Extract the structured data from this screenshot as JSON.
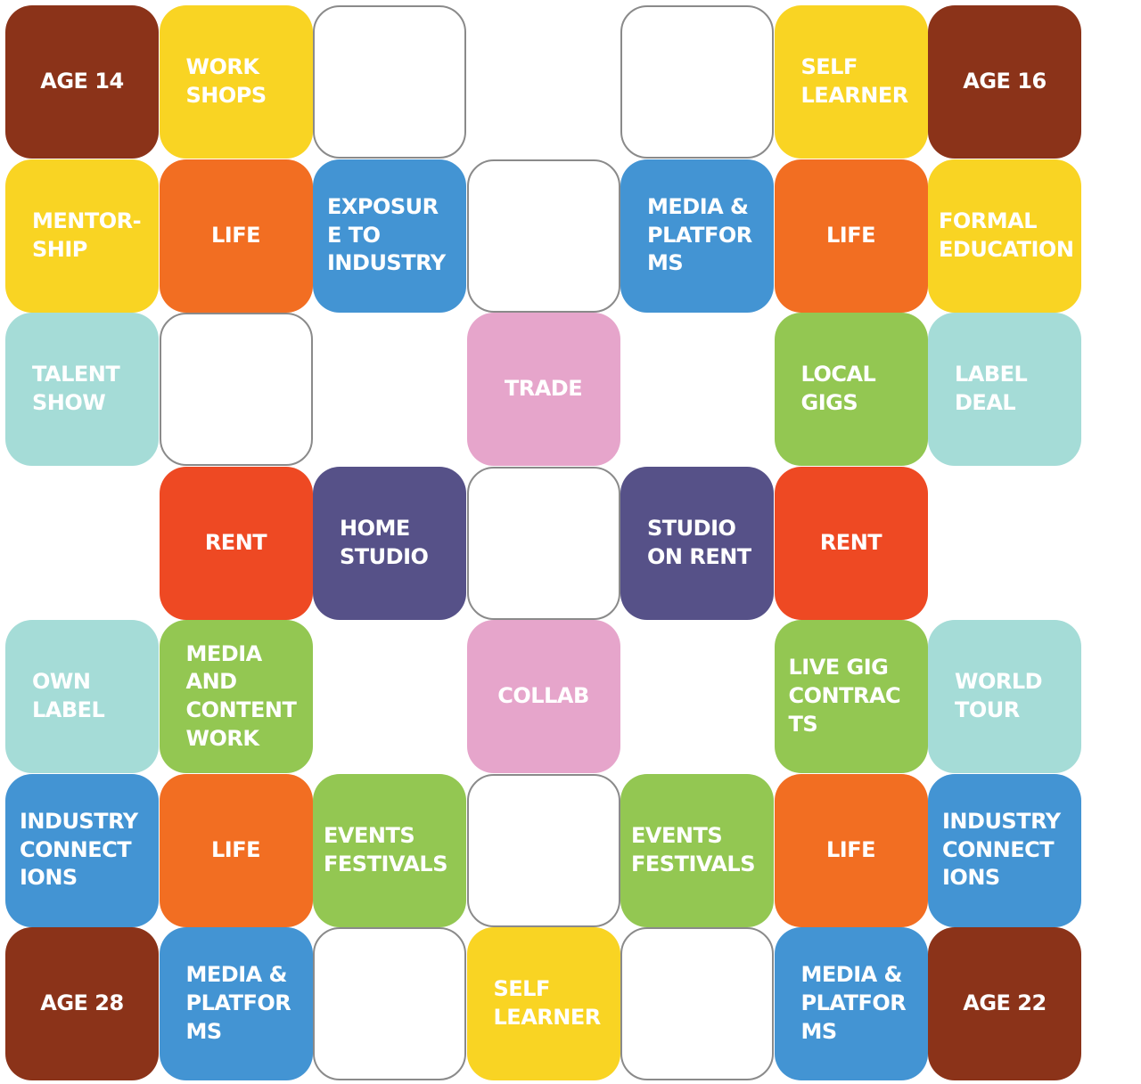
{
  "colors": {
    "brown": "#8B3319",
    "yellow": "#F9D423",
    "orange": "#F26E22",
    "blue": "#4394D3",
    "teal": "#A5DCD7",
    "pink": "#E6A5CB",
    "green": "#93C752",
    "red": "#EE4923",
    "purple": "#565188",
    "empty": "#FFFFFF"
  },
  "board": {
    "tiles": [
      {
        "row": 0,
        "col": 0,
        "text": "AGE 14",
        "color": "brown",
        "align": "center"
      },
      {
        "row": 0,
        "col": 1,
        "text": "WORK\nSHOPS",
        "color": "yellow",
        "align": "left"
      },
      {
        "row": 0,
        "col": 2,
        "text": "",
        "color": "empty",
        "align": "center"
      },
      {
        "row": 0,
        "col": 4,
        "text": "",
        "color": "empty",
        "align": "center"
      },
      {
        "row": 0,
        "col": 5,
        "text": "SELF\nLEARNER",
        "color": "yellow",
        "align": "left"
      },
      {
        "row": 0,
        "col": 6,
        "text": "AGE 16",
        "color": "brown",
        "align": "center"
      },
      {
        "row": 1,
        "col": 0,
        "text": "MENTOR-\nSHIP",
        "color": "yellow",
        "align": "left"
      },
      {
        "row": 1,
        "col": 1,
        "text": "LIFE",
        "color": "orange",
        "align": "center"
      },
      {
        "row": 1,
        "col": 2,
        "text": "EXPOSUR\nE TO\nINDUSTRY",
        "color": "blue",
        "align": "left"
      },
      {
        "row": 1,
        "col": 3,
        "text": "",
        "color": "empty",
        "align": "center"
      },
      {
        "row": 1,
        "col": 4,
        "text": "MEDIA &\nPLATFOR\nMS",
        "color": "blue",
        "align": "left"
      },
      {
        "row": 1,
        "col": 5,
        "text": "LIFE",
        "color": "orange",
        "align": "center"
      },
      {
        "row": 1,
        "col": 6,
        "text": "FORMAL\nEDUCATION",
        "color": "yellow",
        "align": "left"
      },
      {
        "row": 2,
        "col": 0,
        "text": "TALENT\nSHOW",
        "color": "teal",
        "align": "left"
      },
      {
        "row": 2,
        "col": 1,
        "text": "",
        "color": "empty",
        "align": "center"
      },
      {
        "row": 2,
        "col": 3,
        "text": "TRADE",
        "color": "pink",
        "align": "center"
      },
      {
        "row": 2,
        "col": 5,
        "text": "LOCAL\nGIGS",
        "color": "green",
        "align": "left"
      },
      {
        "row": 2,
        "col": 6,
        "text": "LABEL\nDEAL",
        "color": "teal",
        "align": "left"
      },
      {
        "row": 3,
        "col": 1,
        "text": "RENT",
        "color": "red",
        "align": "center"
      },
      {
        "row": 3,
        "col": 2,
        "text": "HOME\nSTUDIO",
        "color": "purple",
        "align": "left"
      },
      {
        "row": 3,
        "col": 3,
        "text": "",
        "color": "empty",
        "align": "center"
      },
      {
        "row": 3,
        "col": 4,
        "text": "STUDIO\nON RENT",
        "color": "purple",
        "align": "left"
      },
      {
        "row": 3,
        "col": 5,
        "text": "RENT",
        "color": "red",
        "align": "center"
      },
      {
        "row": 4,
        "col": 0,
        "text": "OWN\nLABEL",
        "color": "teal",
        "align": "left"
      },
      {
        "row": 4,
        "col": 1,
        "text": "MEDIA\nAND\nCONTENT\nWORK",
        "color": "green",
        "align": "left"
      },
      {
        "row": 4,
        "col": 3,
        "text": "COLLAB",
        "color": "pink",
        "align": "center"
      },
      {
        "row": 4,
        "col": 5,
        "text": "LIVE GIG\nCONTRAC\nTS",
        "color": "green",
        "align": "left"
      },
      {
        "row": 4,
        "col": 6,
        "text": "WORLD\nTOUR",
        "color": "teal",
        "align": "left"
      },
      {
        "row": 5,
        "col": 0,
        "text": "INDUSTRY\nCONNECT\nIONS",
        "color": "blue",
        "align": "left"
      },
      {
        "row": 5,
        "col": 1,
        "text": "LIFE",
        "color": "orange",
        "align": "center"
      },
      {
        "row": 5,
        "col": 2,
        "text": "EVENTS\nFESTIVALS",
        "color": "green",
        "align": "left"
      },
      {
        "row": 5,
        "col": 3,
        "text": "",
        "color": "empty",
        "align": "center"
      },
      {
        "row": 5,
        "col": 4,
        "text": "EVENTS\nFESTIVALS",
        "color": "green",
        "align": "left"
      },
      {
        "row": 5,
        "col": 5,
        "text": "LIFE",
        "color": "orange",
        "align": "center"
      },
      {
        "row": 5,
        "col": 6,
        "text": "INDUSTRY\nCONNECT\nIONS",
        "color": "blue",
        "align": "left"
      },
      {
        "row": 6,
        "col": 0,
        "text": "AGE 28",
        "color": "brown",
        "align": "center"
      },
      {
        "row": 6,
        "col": 1,
        "text": "MEDIA &\nPLATFOR\nMS",
        "color": "blue",
        "align": "left"
      },
      {
        "row": 6,
        "col": 2,
        "text": "",
        "color": "empty",
        "align": "center"
      },
      {
        "row": 6,
        "col": 3,
        "text": "SELF\nLEARNER",
        "color": "yellow",
        "align": "left"
      },
      {
        "row": 6,
        "col": 4,
        "text": "",
        "color": "empty",
        "align": "center"
      },
      {
        "row": 6,
        "col": 5,
        "text": "MEDIA &\nPLATFOR\nMS",
        "color": "blue",
        "align": "left"
      },
      {
        "row": 6,
        "col": 6,
        "text": "AGE 22",
        "color": "brown",
        "align": "center"
      }
    ]
  }
}
